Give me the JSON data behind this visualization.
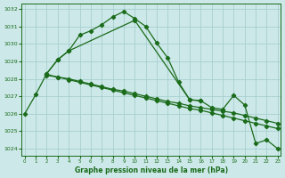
{
  "title": "Graphe pression niveau de la mer (hPa)",
  "background_color": "#cce8e8",
  "grid_color": "#a8d0d0",
  "line_color": "#1a6b1a",
  "xlim": [
    -0.3,
    23.3
  ],
  "ylim": [
    1023.6,
    1032.3
  ],
  "yticks": [
    1024,
    1025,
    1026,
    1027,
    1028,
    1029,
    1030,
    1031,
    1032
  ],
  "xticks": [
    0,
    1,
    2,
    3,
    4,
    5,
    6,
    7,
    8,
    9,
    10,
    11,
    12,
    13,
    14,
    15,
    16,
    17,
    18,
    19,
    20,
    21,
    22,
    23
  ],
  "line1_x": [
    0,
    1,
    2,
    3,
    4,
    5,
    6,
    7,
    8,
    9,
    10,
    11,
    12,
    13,
    14,
    15,
    16
  ],
  "line1_y": [
    1026.0,
    1027.1,
    1028.3,
    1029.1,
    1029.6,
    1030.5,
    1030.75,
    1031.1,
    1031.55,
    1031.85,
    1031.45,
    1031.0,
    1030.05,
    1029.2,
    1027.8,
    1026.8,
    1026.75
  ],
  "line2_x": [
    2,
    3,
    4,
    10,
    15,
    16,
    17,
    18,
    19,
    20,
    21,
    22,
    23
  ],
  "line2_y": [
    1028.3,
    1029.1,
    1029.6,
    1031.35,
    1026.8,
    1026.75,
    1026.35,
    1026.25,
    1027.05,
    1026.5,
    1024.3,
    1024.5,
    1024.0
  ],
  "line3_x": [
    2,
    3,
    4,
    5,
    6,
    7,
    8,
    9,
    10,
    11,
    12,
    13,
    14,
    15,
    16,
    17,
    18,
    19,
    20,
    21,
    22,
    23
  ],
  "line3_y": [
    1028.2,
    1028.1,
    1027.95,
    1027.8,
    1027.65,
    1027.5,
    1027.35,
    1027.2,
    1027.05,
    1026.9,
    1026.75,
    1026.6,
    1026.45,
    1026.3,
    1026.2,
    1026.05,
    1025.9,
    1025.75,
    1025.6,
    1025.45,
    1025.3,
    1025.15
  ],
  "line4_x": [
    2,
    3,
    4,
    5,
    6,
    7,
    8,
    9,
    10,
    11,
    12,
    13,
    14,
    15,
    16,
    17,
    18,
    19,
    20,
    21,
    22,
    23
  ],
  "line4_y": [
    1028.25,
    1028.1,
    1028.0,
    1027.85,
    1027.7,
    1027.55,
    1027.4,
    1027.3,
    1027.15,
    1027.0,
    1026.85,
    1026.7,
    1026.6,
    1026.45,
    1026.35,
    1026.25,
    1026.15,
    1026.05,
    1025.9,
    1025.75,
    1025.6,
    1025.45
  ]
}
